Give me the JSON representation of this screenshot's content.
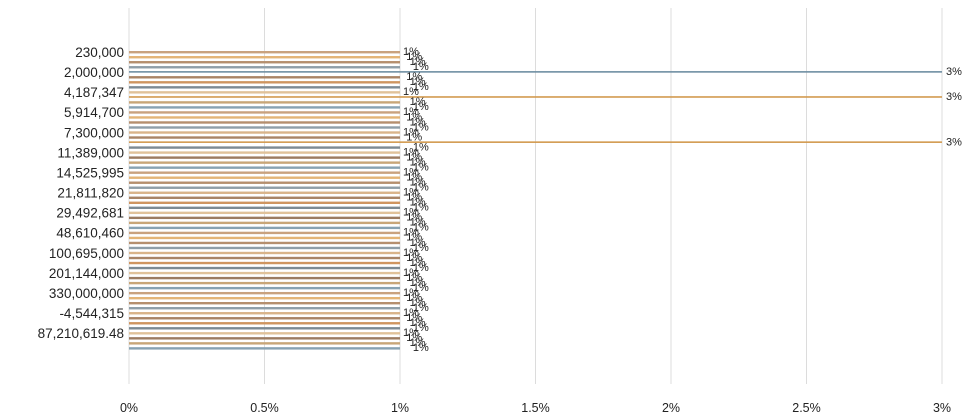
{
  "chart_data": {
    "type": "bar",
    "orientation": "horizontal",
    "x_ticks": [
      "0%",
      "0.5%",
      "1%",
      "1.5%",
      "2%",
      "2.5%",
      "3%"
    ],
    "xlim": [
      0,
      3
    ],
    "grid": true,
    "legend": "none",
    "category_labels": [
      "230,000",
      "2,000,000",
      "4,187,347",
      "5,914,700",
      "7,300,000",
      "11,389,000",
      "14,525,995",
      "21,811,820",
      "29,492,681",
      "48,610,460",
      "100,695,000",
      "201,144,000",
      "330,000,000",
      "-4,544,315",
      "87,210,619.48"
    ],
    "rows_per_label": 4,
    "default_value": 1,
    "default_label": "1%",
    "highlighted_bars": [
      {
        "row": 4,
        "value": 3,
        "label": "3%",
        "color": "#6f8fa3"
      },
      {
        "row": 9,
        "value": 3,
        "label": "3%",
        "color": "#d29a4f"
      },
      {
        "row": 18,
        "value": 3,
        "label": "3%",
        "color": "#d29a4f"
      }
    ],
    "palette": [
      "#c9a27e",
      "#e3b476",
      "#b58f6e",
      "#8f9ea8",
      "#d9b48a",
      "#a98466",
      "#cf9560",
      "#7d8a93",
      "#e0c29a",
      "#9c7b60",
      "#c8a678",
      "#88a2b2"
    ]
  }
}
